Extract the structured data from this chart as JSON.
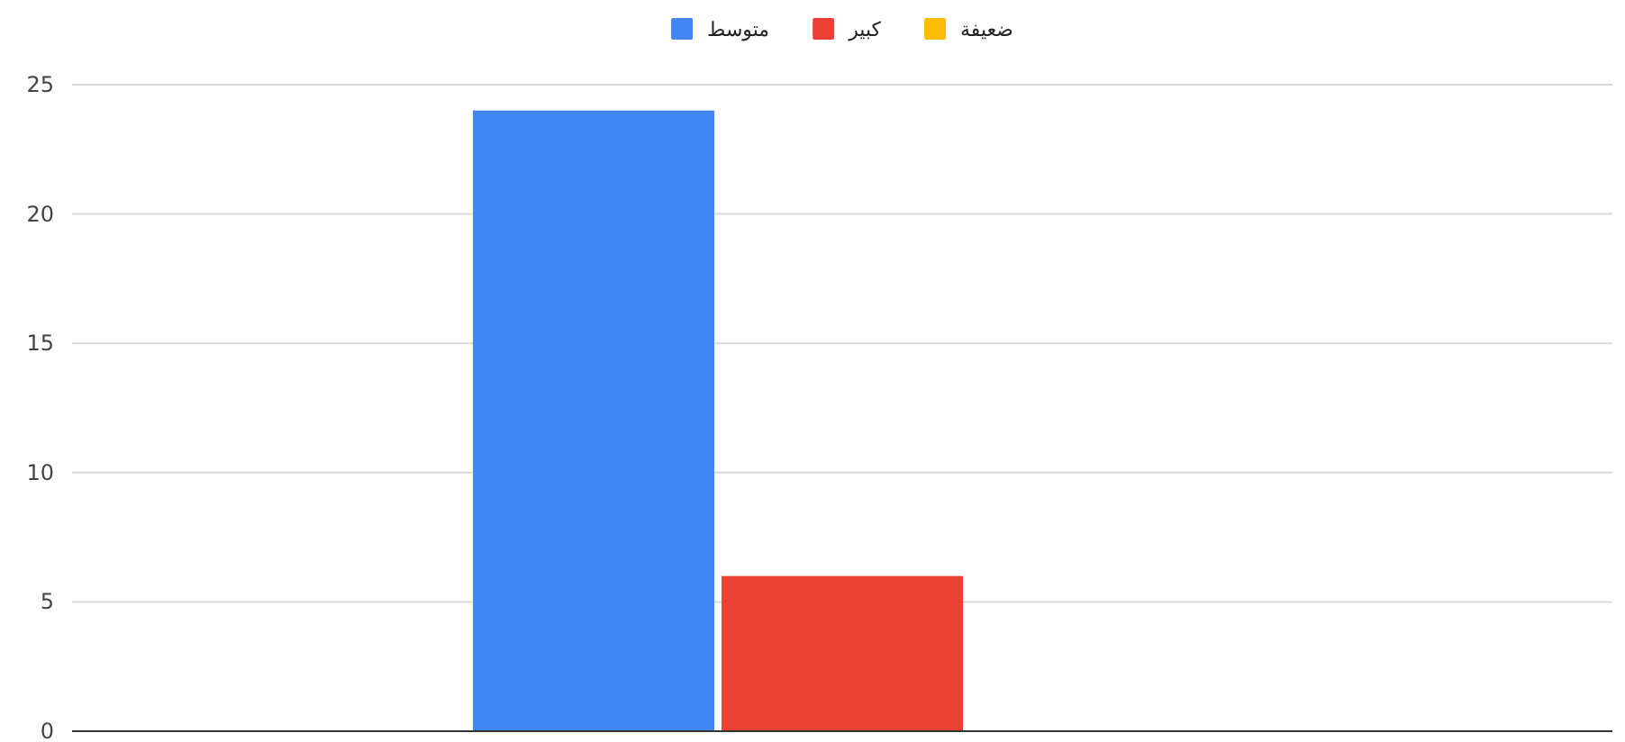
{
  "chart_data": {
    "type": "bar",
    "categories": [
      null
    ],
    "series": [
      {
        "name": "متوسط",
        "color": "#4285f4",
        "values": [
          24
        ]
      },
      {
        "name": "كبير",
        "color": "#ea4335",
        "values": [
          6
        ]
      },
      {
        "name": "ضعيفة",
        "color": "#fbbc04",
        "values": [
          0
        ]
      }
    ],
    "ylim": [
      0,
      25
    ],
    "yticks": [
      0,
      5,
      10,
      15,
      20,
      25
    ],
    "grid": "y",
    "legend": "top",
    "tick_labels": "y"
  }
}
